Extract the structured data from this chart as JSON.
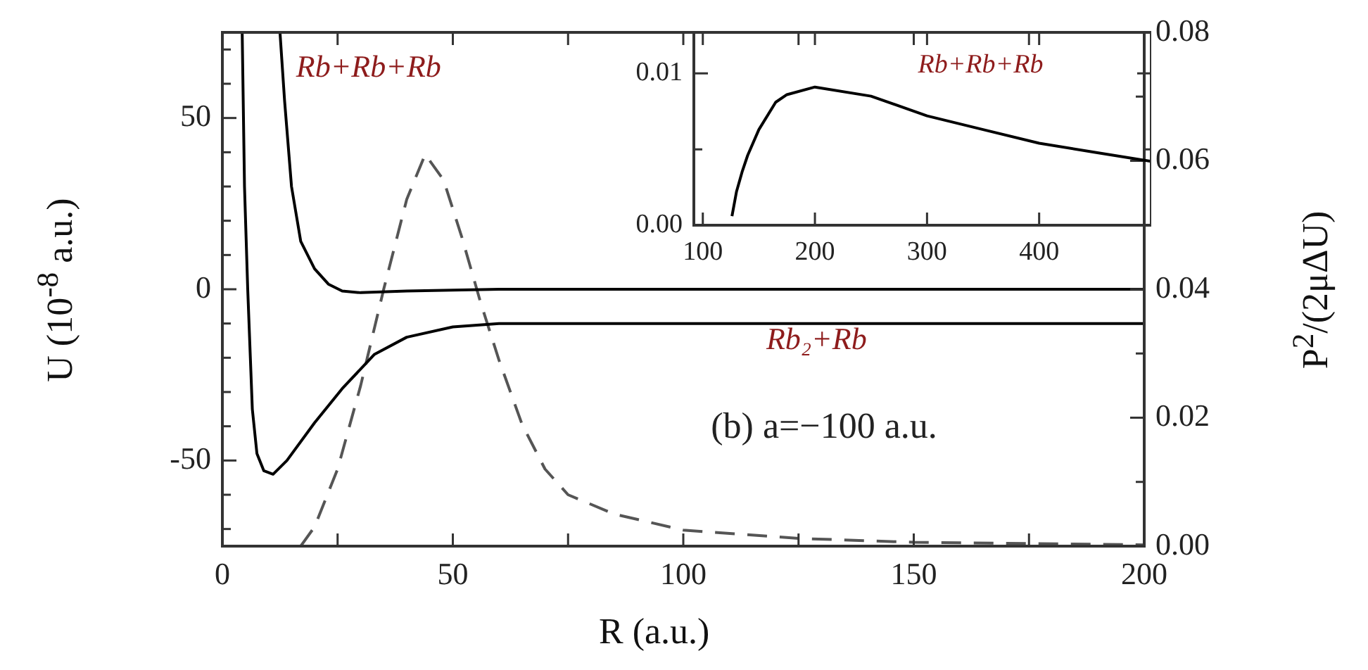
{
  "chart_data": [
    {
      "type": "line",
      "xlabel": "R (a.u.)",
      "ylabel": "U (10$^{-8}$ a.u.)",
      "y2label": "P$^{2}$/(2μΔU)",
      "series": [
        {
          "color": "#000000",
          "line_style": "solid",
          "x": [
            12.5,
            13.5,
            15,
            17,
            20,
            23,
            26,
            30,
            40,
            60,
            200
          ],
          "values": [
            75,
            55,
            30,
            14,
            6,
            1.5,
            -0.5,
            -1,
            -0.5,
            0,
            0
          ]
        },
        {
          "color": "#000000",
          "line_style": "solid",
          "x": [
            4.3,
            4.8,
            5.5,
            6.5,
            7.5,
            9,
            11,
            14,
            20,
            26,
            33,
            40,
            50,
            60,
            200
          ],
          "values": [
            75,
            30,
            0,
            -35,
            -48,
            -53,
            -54,
            -50,
            -39,
            -29,
            -19,
            -14,
            -11,
            -10,
            -10
          ]
        },
        {
          "color": "#555555",
          "line_style": "dashed",
          "axis": "y2",
          "x": [
            17,
            20,
            25,
            30,
            35,
            40,
            44,
            48,
            52,
            56,
            60,
            65,
            70,
            75,
            85,
            100,
            125,
            150,
            200
          ],
          "values": [
            0,
            0.003,
            0.012,
            0.025,
            0.04,
            0.054,
            0.061,
            0.057,
            0.048,
            0.038,
            0.029,
            0.019,
            0.012,
            0.008,
            0.005,
            0.0025,
            0.0012,
            0.0006,
            0.0002
          ]
        }
      ],
      "xlim": [
        0,
        200
      ],
      "xticks": [
        0,
        {
          "value": 25,
          "label": null
        },
        50,
        {
          "value": 75,
          "label": null
        },
        100,
        {
          "value": 125,
          "label": null
        },
        150,
        {
          "value": 175,
          "label": null
        },
        200
      ],
      "ylim": [
        -75,
        75
      ],
      "yticks": [
        {
          "value": -70,
          "label": null
        },
        {
          "value": -60,
          "label": null
        },
        -50,
        {
          "value": -40,
          "label": null
        },
        {
          "value": -30,
          "label": null
        },
        {
          "value": -20,
          "label": null
        },
        {
          "value": -10,
          "label": null
        },
        0,
        {
          "value": 10,
          "label": null
        },
        {
          "value": 20,
          "label": null
        },
        {
          "value": 30,
          "label": null
        },
        {
          "value": 40,
          "label": null
        },
        50,
        {
          "value": 60,
          "label": null
        },
        {
          "value": 70,
          "label": null
        }
      ],
      "y2lim": [
        0,
        0.08
      ],
      "y2ticks": [
        {
          "value": 0,
          "label": "0.00"
        },
        {
          "value": 0.01,
          "label": null
        },
        {
          "value": 0.02,
          "label": "0.02"
        },
        {
          "value": 0.03,
          "label": null
        },
        {
          "value": 0.04,
          "label": "0.04"
        },
        {
          "value": 0.05,
          "label": null
        },
        {
          "value": 0.06,
          "label": "0.06"
        },
        {
          "value": 0.07,
          "label": null
        },
        {
          "value": 0.08,
          "label": "0.08"
        }
      ],
      "grid": false,
      "legend": false,
      "marker": "none",
      "annotations": [
        "Rb+Rb+Rb",
        "Rb₂+Rb",
        "(b) a=−100 a.u."
      ]
    },
    {
      "type": "line",
      "series": [
        {
          "color": "#000000",
          "line_style": "solid",
          "x": [
            126,
            130,
            135,
            140,
            150,
            165,
            175,
            200,
            250,
            300,
            350,
            400,
            450,
            500
          ],
          "values": [
            0.0006,
            0.0022,
            0.0035,
            0.0046,
            0.0063,
            0.0081,
            0.0086,
            0.0091,
            0.0085,
            0.0072,
            0.0063,
            0.0054,
            0.0048,
            0.0042
          ]
        }
      ],
      "xlim": [
        92,
        500
      ],
      "xticks": [
        100,
        200,
        300,
        400
      ],
      "ylim": [
        0,
        0.0127
      ],
      "yticks": [
        {
          "value": 0,
          "label": "0.00"
        },
        {
          "value": 0.005,
          "label": null
        },
        {
          "value": 0.01,
          "label": "0.01"
        }
      ],
      "grid": false,
      "legend": false,
      "marker": "none",
      "annotations": [
        "Rb+Rb+Rb"
      ]
    }
  ]
}
